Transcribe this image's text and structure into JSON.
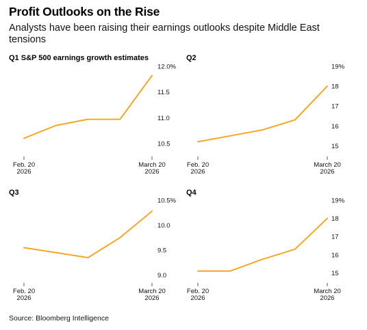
{
  "header": {
    "title": "Profit Outlooks on the Rise",
    "subtitle": "Analysts have been raising their earnings outlooks despite Middle East tensions"
  },
  "footer": {
    "source": "Source: Bloomberg Intelligence"
  },
  "colors": {
    "line": "#F5A623",
    "axis": "#555555",
    "text": "#111111"
  },
  "chart_data": [
    {
      "type": "line",
      "title": "Q1 S&P 500 earnings growth estimates",
      "x": [
        "Feb. 20 2026",
        "",
        "",
        "",
        "March 20 2026"
      ],
      "x_tick_labels": [
        [
          "Feb. 20",
          "2026"
        ],
        [
          "March 20",
          "2026"
        ]
      ],
      "series": [
        {
          "values": [
            10.6,
            10.85,
            10.97,
            10.97,
            11.82
          ]
        }
      ],
      "ylim": [
        10.3,
        12.0
      ],
      "y_ticks": [
        10.5,
        11.0,
        11.5,
        12.0
      ],
      "y_tick_labels": [
        "10.5",
        "11.0",
        "11.5",
        "12.0%"
      ],
      "grid": false
    },
    {
      "type": "line",
      "title": "Q2",
      "x": [
        "Feb. 20 2026",
        "",
        "",
        "",
        "March 20 2026"
      ],
      "x_tick_labels": [
        [
          "Feb. 20",
          "2026"
        ],
        [
          "March 20",
          "2026"
        ]
      ],
      "series": [
        {
          "values": [
            15.2,
            15.5,
            15.8,
            16.3,
            18.0
          ]
        }
      ],
      "ylim": [
        14.6,
        19.0
      ],
      "y_ticks": [
        15,
        16,
        17,
        18,
        19
      ],
      "y_tick_labels": [
        "15",
        "16",
        "17",
        "18",
        "19%"
      ],
      "grid": false
    },
    {
      "type": "line",
      "title": "Q3",
      "x": [
        "Feb. 20 2026",
        "",
        "",
        "",
        "March 20 2026"
      ],
      "x_tick_labels": [
        [
          "Feb. 20",
          "2026"
        ],
        [
          "March 20",
          "2026"
        ]
      ],
      "series": [
        {
          "values": [
            9.55,
            9.45,
            9.35,
            9.75,
            10.28
          ]
        }
      ],
      "ylim": [
        8.9,
        10.5
      ],
      "y_ticks": [
        9.0,
        9.5,
        10.0,
        10.5
      ],
      "y_tick_labels": [
        "9.0",
        "9.5",
        "10.0",
        "10.5%"
      ],
      "grid": false
    },
    {
      "type": "line",
      "title": "Q4",
      "x": [
        "Feb. 20 2026",
        "",
        "",
        "",
        "March 20 2026"
      ],
      "x_tick_labels": [
        [
          "Feb. 20",
          "2026"
        ],
        [
          "March 20",
          "2026"
        ]
      ],
      "series": [
        {
          "values": [
            15.1,
            15.1,
            15.75,
            16.3,
            18.0
          ]
        }
      ],
      "ylim": [
        14.6,
        19.0
      ],
      "y_ticks": [
        15,
        16,
        17,
        18,
        19
      ],
      "y_tick_labels": [
        "15",
        "16",
        "17",
        "18",
        "19%"
      ],
      "grid": false
    }
  ]
}
